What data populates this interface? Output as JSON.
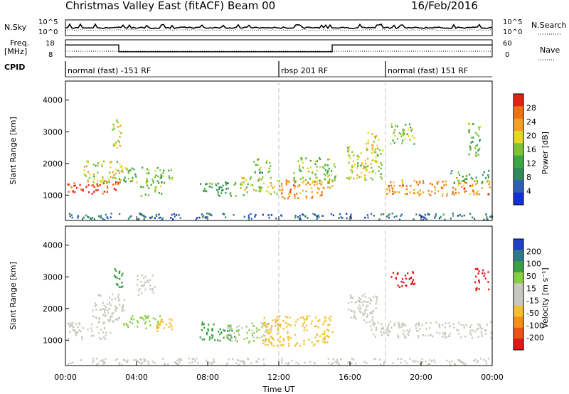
{
  "header": {
    "station": "Christmas Valley East (fitACF)",
    "beam": "Beam 00",
    "date": "16/Feb/2016"
  },
  "top_panels": {
    "nsky_label": "N.Sky",
    "nsky_ticks": [
      "10^5",
      "10^0"
    ],
    "nsearch_label": "N.Search",
    "nsearch_ticks": [
      "10^5",
      "10^0"
    ],
    "freq_label_1": "Freq.",
    "freq_label_2": "[MHz]",
    "freq_ticks": [
      "18",
      "8"
    ],
    "nave_label": "Nave",
    "nave_ticks": [
      "60",
      "0"
    ],
    "cpid_label": "CPID"
  },
  "cpid_segments": [
    {
      "label": "normal (fast) -151 RF",
      "start_h": 0,
      "end_h": 12
    },
    {
      "label": "rbsp 201 RF",
      "start_h": 12,
      "end_h": 18
    },
    {
      "label": "normal (fast) 151 RF",
      "start_h": 18,
      "end_h": 24
    }
  ],
  "freq_steps": [
    {
      "start_h": 0,
      "end_h": 3,
      "mhz": 15
    },
    {
      "start_h": 3,
      "end_h": 15,
      "mhz": 11
    },
    {
      "start_h": 15,
      "end_h": 24,
      "mhz": 15
    }
  ],
  "chart_data": [
    {
      "type": "heatmap",
      "name": "power",
      "ylabel": "Slant Range [km]",
      "yticks": [
        "4000",
        "3000",
        "2000",
        "1000"
      ],
      "ylim": [
        200,
        4600
      ],
      "colorbar_label": "Power [dB]",
      "colorbar_ticks": [
        "28",
        "24",
        "20",
        "16",
        "12",
        "8",
        "4"
      ],
      "colorbar_range": [
        0,
        32
      ],
      "colors": [
        "#1430d8",
        "#2e5fb8",
        "#2e8a5a",
        "#3aa840",
        "#7cc432",
        "#e6d820",
        "#f5a020",
        "#f07010",
        "#e82010"
      ],
      "regions": [
        {
          "x": [
            0.1,
            3.0
          ],
          "y": [
            1050,
            1450
          ],
          "value": 30
        },
        {
          "x": [
            1.0,
            3.2
          ],
          "y": [
            1400,
            2100
          ],
          "value": 18
        },
        {
          "x": [
            2.6,
            3.1
          ],
          "y": [
            2500,
            3400
          ],
          "value": 20
        },
        {
          "x": [
            3.2,
            6.0
          ],
          "y": [
            1400,
            1900
          ],
          "value": 14
        },
        {
          "x": [
            4.2,
            5.4
          ],
          "y": [
            1000,
            1500
          ],
          "value": 16
        },
        {
          "x": [
            7.5,
            10.0
          ],
          "y": [
            1000,
            1450
          ],
          "value": 12
        },
        {
          "x": [
            9.8,
            12.0
          ],
          "y": [
            1050,
            1600
          ],
          "value": 18
        },
        {
          "x": [
            10.5,
            11.5
          ],
          "y": [
            1700,
            2200
          ],
          "value": 14
        },
        {
          "x": [
            12.0,
            15.0
          ],
          "y": [
            900,
            1500
          ],
          "value": 24
        },
        {
          "x": [
            12.8,
            15.2
          ],
          "y": [
            1400,
            2200
          ],
          "value": 16
        },
        {
          "x": [
            15.8,
            17.8
          ],
          "y": [
            1500,
            2600
          ],
          "value": 18
        },
        {
          "x": [
            16.8,
            17.6
          ],
          "y": [
            2400,
            3000
          ],
          "value": 20
        },
        {
          "x": [
            18.0,
            24.0
          ],
          "y": [
            1000,
            1500
          ],
          "value": 24
        },
        {
          "x": [
            18.2,
            19.6
          ],
          "y": [
            2600,
            3300
          ],
          "value": 16
        },
        {
          "x": [
            21.6,
            23.8
          ],
          "y": [
            1400,
            1800
          ],
          "value": 14
        },
        {
          "x": [
            22.6,
            23.4
          ],
          "y": [
            2200,
            3300
          ],
          "value": 14
        },
        {
          "x": [
            0.0,
            24.0
          ],
          "y": [
            250,
            450
          ],
          "value": 6
        }
      ]
    },
    {
      "type": "heatmap",
      "name": "velocity",
      "ylabel": "Slant Range [km]",
      "yticks": [
        "4000",
        "3000",
        "2000",
        "1000"
      ],
      "ylim": [
        200,
        4600
      ],
      "colorbar_label": "Velocity [m s⁻¹]",
      "colorbar_ticks": [
        "200",
        "100",
        "50",
        "15",
        "-15",
        "-50",
        "-100",
        "-200"
      ],
      "colorbar_range": [
        -250,
        250
      ],
      "colors": [
        "#e41414",
        "#f05014",
        "#f59010",
        "#f5c030",
        "#c8c8be",
        "#c8c8be",
        "#88d040",
        "#38a040",
        "#2e7a8a",
        "#2040c8"
      ],
      "regions": [
        {
          "x": [
            0.1,
            2.5
          ],
          "y": [
            1050,
            1600
          ],
          "value": 0
        },
        {
          "x": [
            1.5,
            3.4
          ],
          "y": [
            1600,
            2500
          ],
          "value": 5
        },
        {
          "x": [
            2.7,
            3.2
          ],
          "y": [
            2700,
            3300
          ],
          "value": 120
        },
        {
          "x": [
            3.2,
            5.5
          ],
          "y": [
            1400,
            1800
          ],
          "value": 60
        },
        {
          "x": [
            4.0,
            5.0
          ],
          "y": [
            2400,
            3100
          ],
          "value": 0
        },
        {
          "x": [
            5.0,
            6.2
          ],
          "y": [
            1300,
            1700
          ],
          "value": -60
        },
        {
          "x": [
            7.5,
            9.5
          ],
          "y": [
            1000,
            1600
          ],
          "value": 140
        },
        {
          "x": [
            9.0,
            11.5
          ],
          "y": [
            950,
            1600
          ],
          "value": 50
        },
        {
          "x": [
            11.0,
            15.0
          ],
          "y": [
            850,
            1800
          ],
          "value": -80
        },
        {
          "x": [
            15.8,
            17.6
          ],
          "y": [
            1500,
            2500
          ],
          "value": 0
        },
        {
          "x": [
            17.0,
            24.0
          ],
          "y": [
            1100,
            1600
          ],
          "value": 0
        },
        {
          "x": [
            18.2,
            19.6
          ],
          "y": [
            2700,
            3200
          ],
          "value": -220
        },
        {
          "x": [
            23.0,
            23.8
          ],
          "y": [
            2600,
            3300
          ],
          "value": -220
        },
        {
          "x": [
            0.0,
            24.0
          ],
          "y": [
            250,
            450
          ],
          "value": -30
        }
      ]
    }
  ],
  "xaxis": {
    "label": "Time UT",
    "ticks": [
      "00:00",
      "04:00",
      "08:00",
      "12:00",
      "16:00",
      "20:00",
      "00:00"
    ]
  },
  "colors": {
    "dashed_marker": "#c0c0c0",
    "frame": "#000000"
  }
}
